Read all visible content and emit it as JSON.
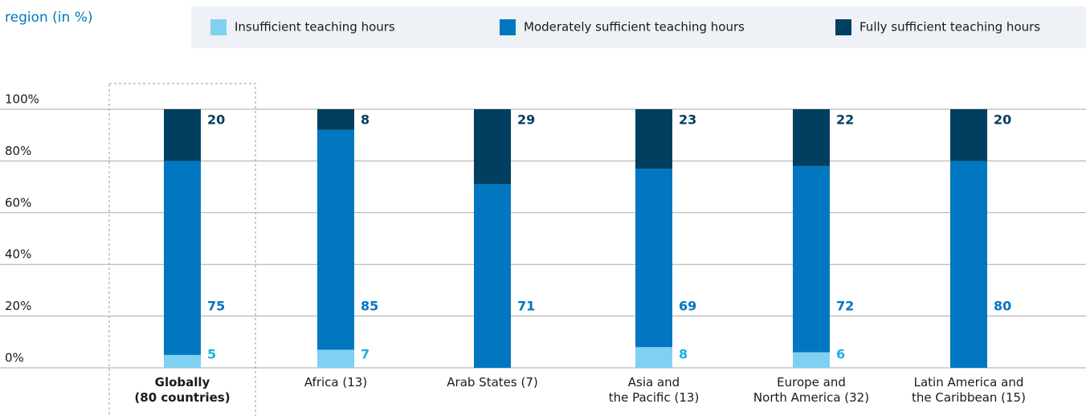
{
  "chart_data": {
    "type": "stacked_bar",
    "title": "region (in %)",
    "categories": [
      "Globally\n(80 countries)",
      "Africa (13)",
      "Arab States (7)",
      "Asia and\nthe Pacific (13)",
      "Europe and\nNorth America (32)",
      "Latin America and\nthe Caribbean (15)"
    ],
    "series": [
      {
        "name": "Insufficient teaching hours",
        "color": "#80d0f2",
        "label_color": "#1ab0e6",
        "values": [
          5,
          7,
          null,
          8,
          6,
          null
        ]
      },
      {
        "name": "Moderately sufficient teaching hours",
        "color": "#0077c0",
        "label_color": "#0077c0",
        "values": [
          75,
          85,
          71,
          69,
          72,
          80
        ]
      },
      {
        "name": "Fully sufficient teaching hours",
        "color": "#003f5f",
        "label_color": "#003f5f",
        "values": [
          20,
          8,
          29,
          23,
          22,
          20
        ]
      }
    ],
    "ylim": [
      0,
      100
    ],
    "yticks": [
      {
        "value": 0,
        "label": "0%"
      },
      {
        "value": 20,
        "label": "20%"
      },
      {
        "value": 40,
        "label": "40%"
      },
      {
        "value": 60,
        "label": "60%"
      },
      {
        "value": 80,
        "label": "80%"
      },
      {
        "value": 100,
        "label": "100%"
      }
    ],
    "grid": true
  }
}
